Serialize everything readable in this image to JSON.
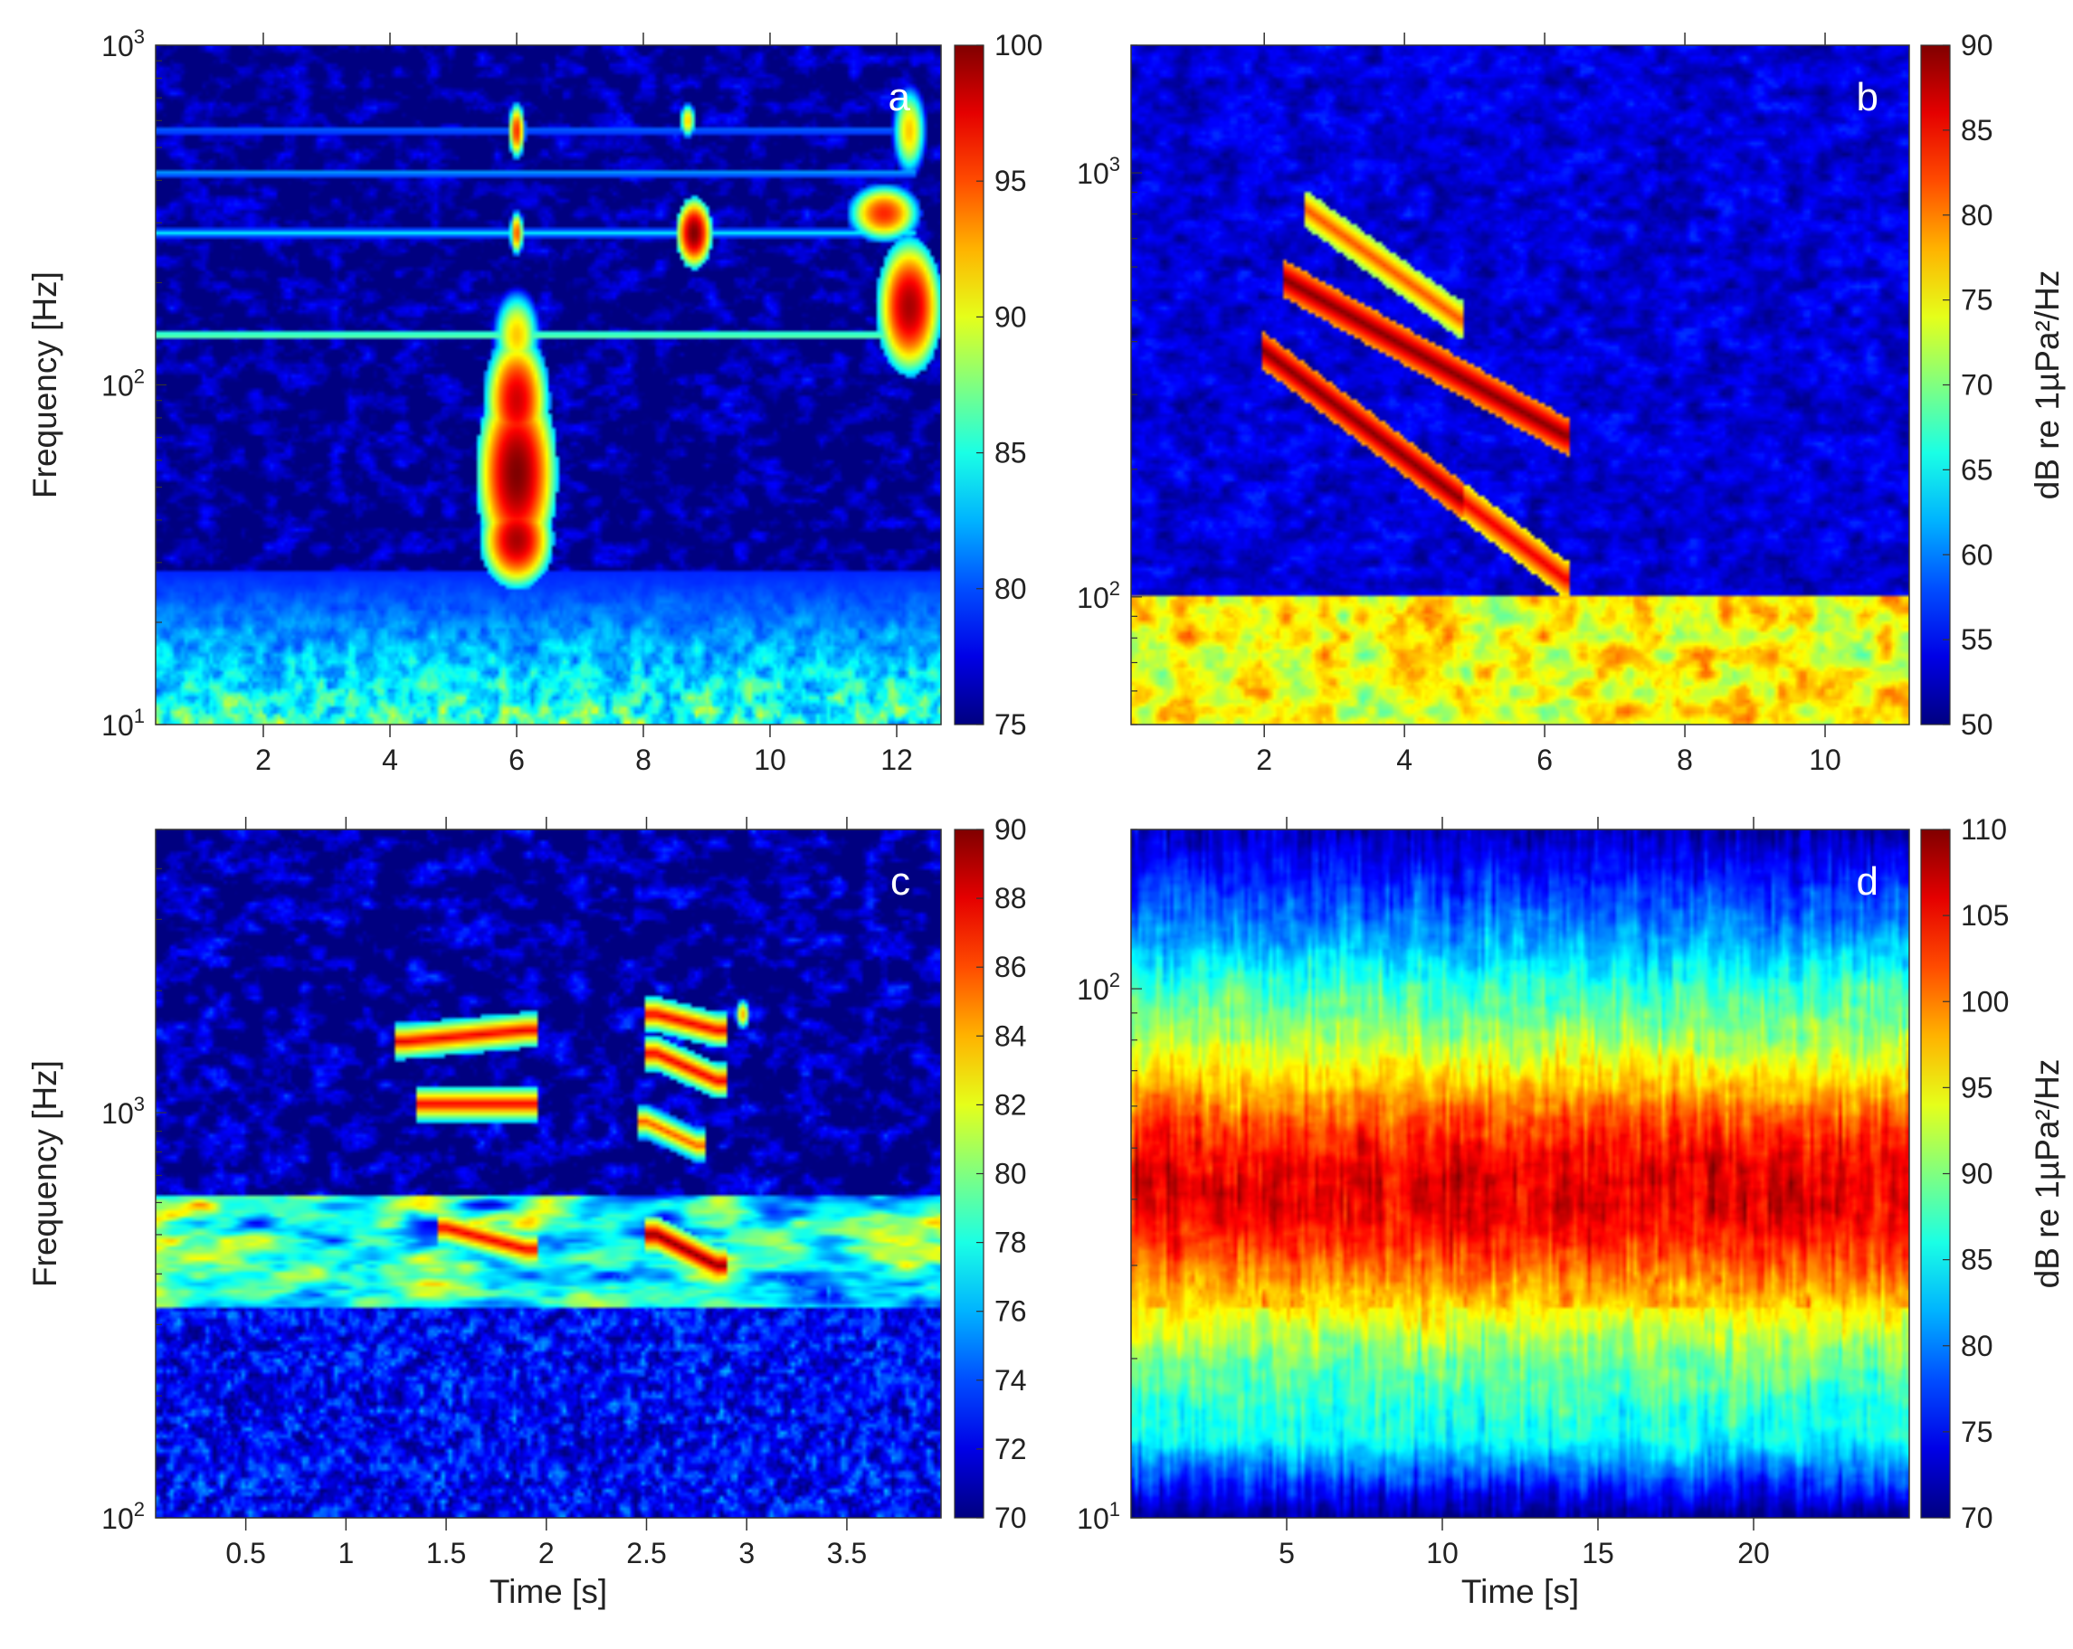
{
  "chart_data": [
    {
      "panel": "a",
      "type": "heatmap",
      "title": "",
      "xlabel": "",
      "ylabel": "Frequency [Hz]",
      "x_ticks": [
        2,
        4,
        6,
        8,
        10,
        12
      ],
      "xlim": [
        0.3,
        12.7
      ],
      "ylim": [
        10,
        1000
      ],
      "yscale": "log",
      "y_ticks": [
        {
          "value": 10,
          "base": "10",
          "exp": "1"
        },
        {
          "value": 100,
          "base": "10",
          "exp": "2"
        },
        {
          "value": 1000,
          "base": "10",
          "exp": "3"
        }
      ],
      "colorbar": {
        "min": 75,
        "max": 100,
        "ticks": [
          75,
          80,
          85,
          90,
          95,
          100
        ],
        "label": ""
      },
      "annotation": "a",
      "grid": false,
      "features": [
        {
          "kind": "harmonic",
          "t0": 0.3,
          "t1": 12.3,
          "f": 140,
          "level": 88
        },
        {
          "kind": "harmonic",
          "t0": 0.3,
          "t1": 12.3,
          "f": 280,
          "level": 84
        },
        {
          "kind": "harmonic",
          "t0": 0.3,
          "t1": 12.3,
          "f": 420,
          "level": 83
        },
        {
          "kind": "harmonic",
          "t0": 0.3,
          "t1": 12.3,
          "f": 560,
          "level": 82
        },
        {
          "kind": "blob",
          "t": 6.0,
          "f": 55,
          "dt": 0.55,
          "df": 0.5,
          "level": 100
        },
        {
          "kind": "blob",
          "t": 6.0,
          "f": 35,
          "dt": 0.5,
          "df": 0.25,
          "level": 99
        },
        {
          "kind": "blob",
          "t": 6.0,
          "f": 90,
          "dt": 0.45,
          "df": 0.35,
          "level": 98
        },
        {
          "kind": "blob",
          "t": 6.0,
          "f": 140,
          "dt": 0.35,
          "df": 0.25,
          "level": 92
        },
        {
          "kind": "blob",
          "t": 6.0,
          "f": 560,
          "dt": 0.12,
          "df": 0.15,
          "level": 96
        },
        {
          "kind": "blob",
          "t": 6.0,
          "f": 280,
          "dt": 0.1,
          "df": 0.12,
          "level": 95
        },
        {
          "kind": "blob",
          "t": 8.8,
          "f": 280,
          "dt": 0.25,
          "df": 0.18,
          "level": 100
        },
        {
          "kind": "blob",
          "t": 8.7,
          "f": 600,
          "dt": 0.12,
          "df": 0.1,
          "level": 92
        },
        {
          "kind": "blob",
          "t": 12.2,
          "f": 170,
          "dt": 0.45,
          "df": 0.35,
          "level": 99
        },
        {
          "kind": "blob",
          "t": 11.8,
          "f": 320,
          "dt": 0.5,
          "df": 0.15,
          "level": 96
        },
        {
          "kind": "blob",
          "t": 12.2,
          "f": 560,
          "dt": 0.25,
          "df": 0.25,
          "level": 92
        }
      ]
    },
    {
      "panel": "b",
      "type": "heatmap",
      "title": "",
      "xlabel": "",
      "ylabel": "",
      "x_ticks": [
        2,
        4,
        6,
        8,
        10
      ],
      "xlim": [
        0.1,
        11.2
      ],
      "ylim": [
        50,
        2000
      ],
      "yscale": "log",
      "y_ticks": [
        {
          "value": 100,
          "base": "10",
          "exp": "2"
        },
        {
          "value": 1000,
          "base": "10",
          "exp": "3"
        }
      ],
      "colorbar": {
        "min": 50,
        "max": 90,
        "ticks": [
          50,
          55,
          60,
          65,
          70,
          75,
          80,
          85,
          90
        ],
        "label": "dB re 1µPa²/Hz"
      },
      "annotation": "b",
      "grid": false,
      "features": [
        {
          "kind": "band",
          "f0": 50,
          "f1": 100,
          "level": 76
        },
        {
          "kind": "sweep",
          "t0": 2.0,
          "t1": 4.8,
          "f0": 380,
          "f1": 170,
          "level": 90
        },
        {
          "kind": "sweep",
          "t0": 4.8,
          "t1": 6.3,
          "f0": 170,
          "f1": 110,
          "level": 86
        },
        {
          "kind": "sweep",
          "t0": 2.3,
          "t1": 6.3,
          "f0": 560,
          "f1": 240,
          "level": 90
        },
        {
          "kind": "sweep",
          "t0": 2.6,
          "t1": 4.8,
          "f0": 820,
          "f1": 450,
          "level": 82
        }
      ]
    },
    {
      "panel": "c",
      "type": "heatmap",
      "title": "",
      "xlabel": "Time [s]",
      "ylabel": "Frequency [Hz]",
      "x_ticks": [
        0.5,
        1,
        1.5,
        2,
        2.5,
        3,
        3.5
      ],
      "xlim": [
        0.05,
        3.97
      ],
      "ylim": [
        100,
        5000
      ],
      "yscale": "log",
      "y_ticks": [
        {
          "value": 100,
          "base": "10",
          "exp": "2"
        },
        {
          "value": 1000,
          "base": "10",
          "exp": "3"
        }
      ],
      "colorbar": {
        "min": 70,
        "max": 90,
        "ticks": [
          70,
          72,
          74,
          76,
          78,
          80,
          82,
          84,
          86,
          88,
          90
        ],
        "label": ""
      },
      "annotation": "c",
      "grid": false,
      "features": [
        {
          "kind": "band",
          "f0": 330,
          "f1": 620,
          "level": 79
        },
        {
          "kind": "sweep",
          "t0": 1.3,
          "t1": 1.9,
          "f0": 1500,
          "f1": 1600,
          "level": 88
        },
        {
          "kind": "sweep",
          "t0": 1.4,
          "t1": 1.9,
          "f0": 1050,
          "f1": 1050,
          "level": 88
        },
        {
          "kind": "sweep",
          "t0": 1.5,
          "t1": 1.9,
          "f0": 520,
          "f1": 460,
          "level": 88
        },
        {
          "kind": "sweep",
          "t0": 2.55,
          "t1": 2.85,
          "f0": 1750,
          "f1": 1600,
          "level": 88
        },
        {
          "kind": "sweep",
          "t0": 2.55,
          "t1": 2.85,
          "f0": 1400,
          "f1": 1200,
          "level": 88
        },
        {
          "kind": "sweep",
          "t0": 2.5,
          "t1": 2.75,
          "f0": 950,
          "f1": 830,
          "level": 86
        },
        {
          "kind": "sweep",
          "t0": 2.55,
          "t1": 2.85,
          "f0": 500,
          "f1": 420,
          "level": 90
        },
        {
          "kind": "blob",
          "t": 2.98,
          "f": 1750,
          "dt": 0.04,
          "df": 0.08,
          "level": 84
        }
      ]
    },
    {
      "panel": "d",
      "type": "heatmap",
      "title": "",
      "xlabel": "Time [s]",
      "ylabel": "",
      "x_ticks": [
        5,
        10,
        15,
        20
      ],
      "xlim": [
        0,
        25
      ],
      "ylim": [
        10,
        200
      ],
      "yscale": "log",
      "y_ticks": [
        {
          "value": 10,
          "base": "10",
          "exp": "1"
        },
        {
          "value": 100,
          "base": "10",
          "exp": "2"
        }
      ],
      "colorbar": {
        "min": 70,
        "max": 110,
        "ticks": [
          70,
          75,
          80,
          85,
          90,
          95,
          100,
          105,
          110
        ],
        "label": "dB re 1µPa²/Hz"
      },
      "annotation": "d",
      "grid": false,
      "features": [
        {
          "kind": "band",
          "f0": 25,
          "f1": 60,
          "level": 97
        }
      ]
    }
  ]
}
